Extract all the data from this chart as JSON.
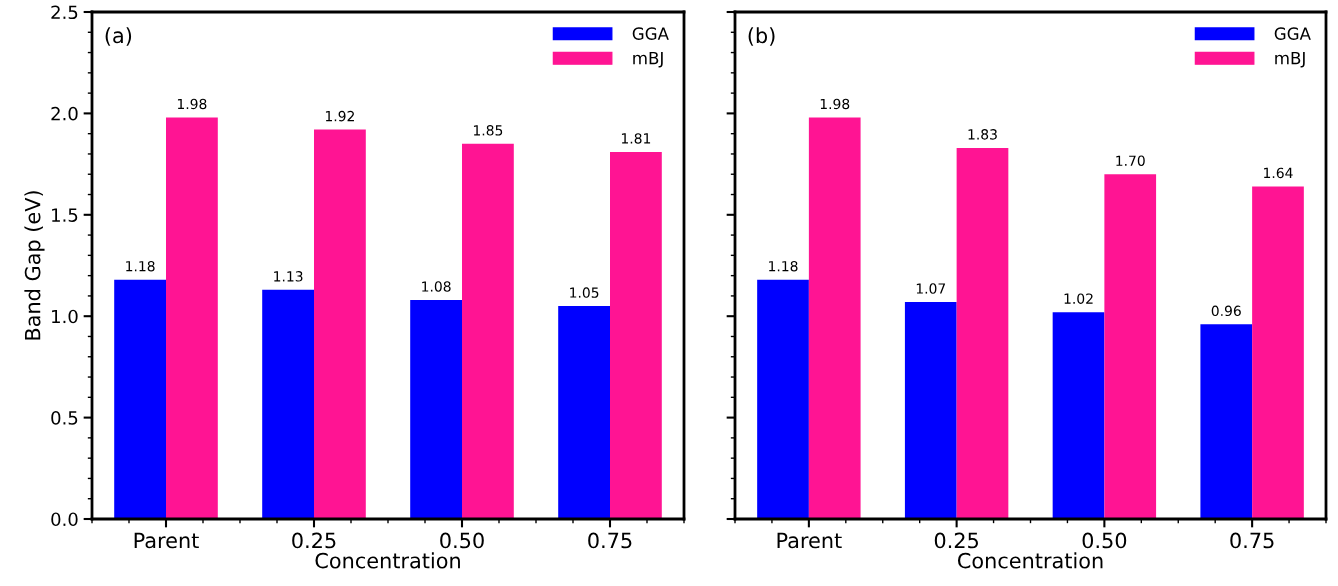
{
  "chart_data": [
    {
      "type": "bar",
      "xlabel": "Concentration",
      "ylabel": "Band Gap (eV)",
      "annotations": [
        "(a)"
      ],
      "categories": [
        "Parent",
        "0.25",
        "0.50",
        "0.75"
      ],
      "series": [
        {
          "name": "GGA",
          "color": "#0000ff",
          "values": [
            1.18,
            1.13,
            1.08,
            1.05
          ],
          "value_labels": [
            "1.18",
            "1.13",
            "1.08",
            "1.05"
          ]
        },
        {
          "name": "mBJ",
          "color": "#ff1493",
          "values": [
            1.98,
            1.92,
            1.85,
            1.81
          ],
          "value_labels": [
            "1.98",
            "1.92",
            "1.85",
            "1.81"
          ]
        }
      ],
      "ylim": [
        0,
        2.5
      ],
      "yticks": [
        {
          "value": 0,
          "label": "0.0"
        },
        0.5,
        {
          "value": 1,
          "label": "1.0"
        },
        1.5,
        {
          "value": 2,
          "label": "2.0"
        },
        2.5
      ],
      "legend": "top right"
    },
    {
      "type": "bar",
      "xlabel": "Concentration",
      "annotations": [
        "(b)"
      ],
      "categories": [
        "Parent",
        "0.25",
        "0.50",
        "0.75"
      ],
      "series": [
        {
          "name": "GGA",
          "color": "#0000ff",
          "values": [
            1.18,
            1.07,
            1.02,
            0.96
          ],
          "value_labels": [
            "1.18",
            "1.07",
            "1.02",
            "0.96"
          ]
        },
        {
          "name": "mBJ",
          "color": "#ff1493",
          "values": [
            1.98,
            1.83,
            1.7,
            1.64
          ],
          "value_labels": [
            "1.98",
            "1.83",
            "1.70",
            "1.64"
          ]
        }
      ],
      "ylim": [
        0,
        2.5
      ],
      "yticks": [
        {
          "value": 0,
          "label": null
        },
        {
          "value": 0.5,
          "label": null
        },
        {
          "value": 1,
          "label": null
        },
        {
          "value": 1.5,
          "label": null
        },
        {
          "value": 2,
          "label": null
        },
        {
          "value": 2.5,
          "label": null
        }
      ],
      "tick_labels": "x",
      "legend": "top right"
    }
  ]
}
